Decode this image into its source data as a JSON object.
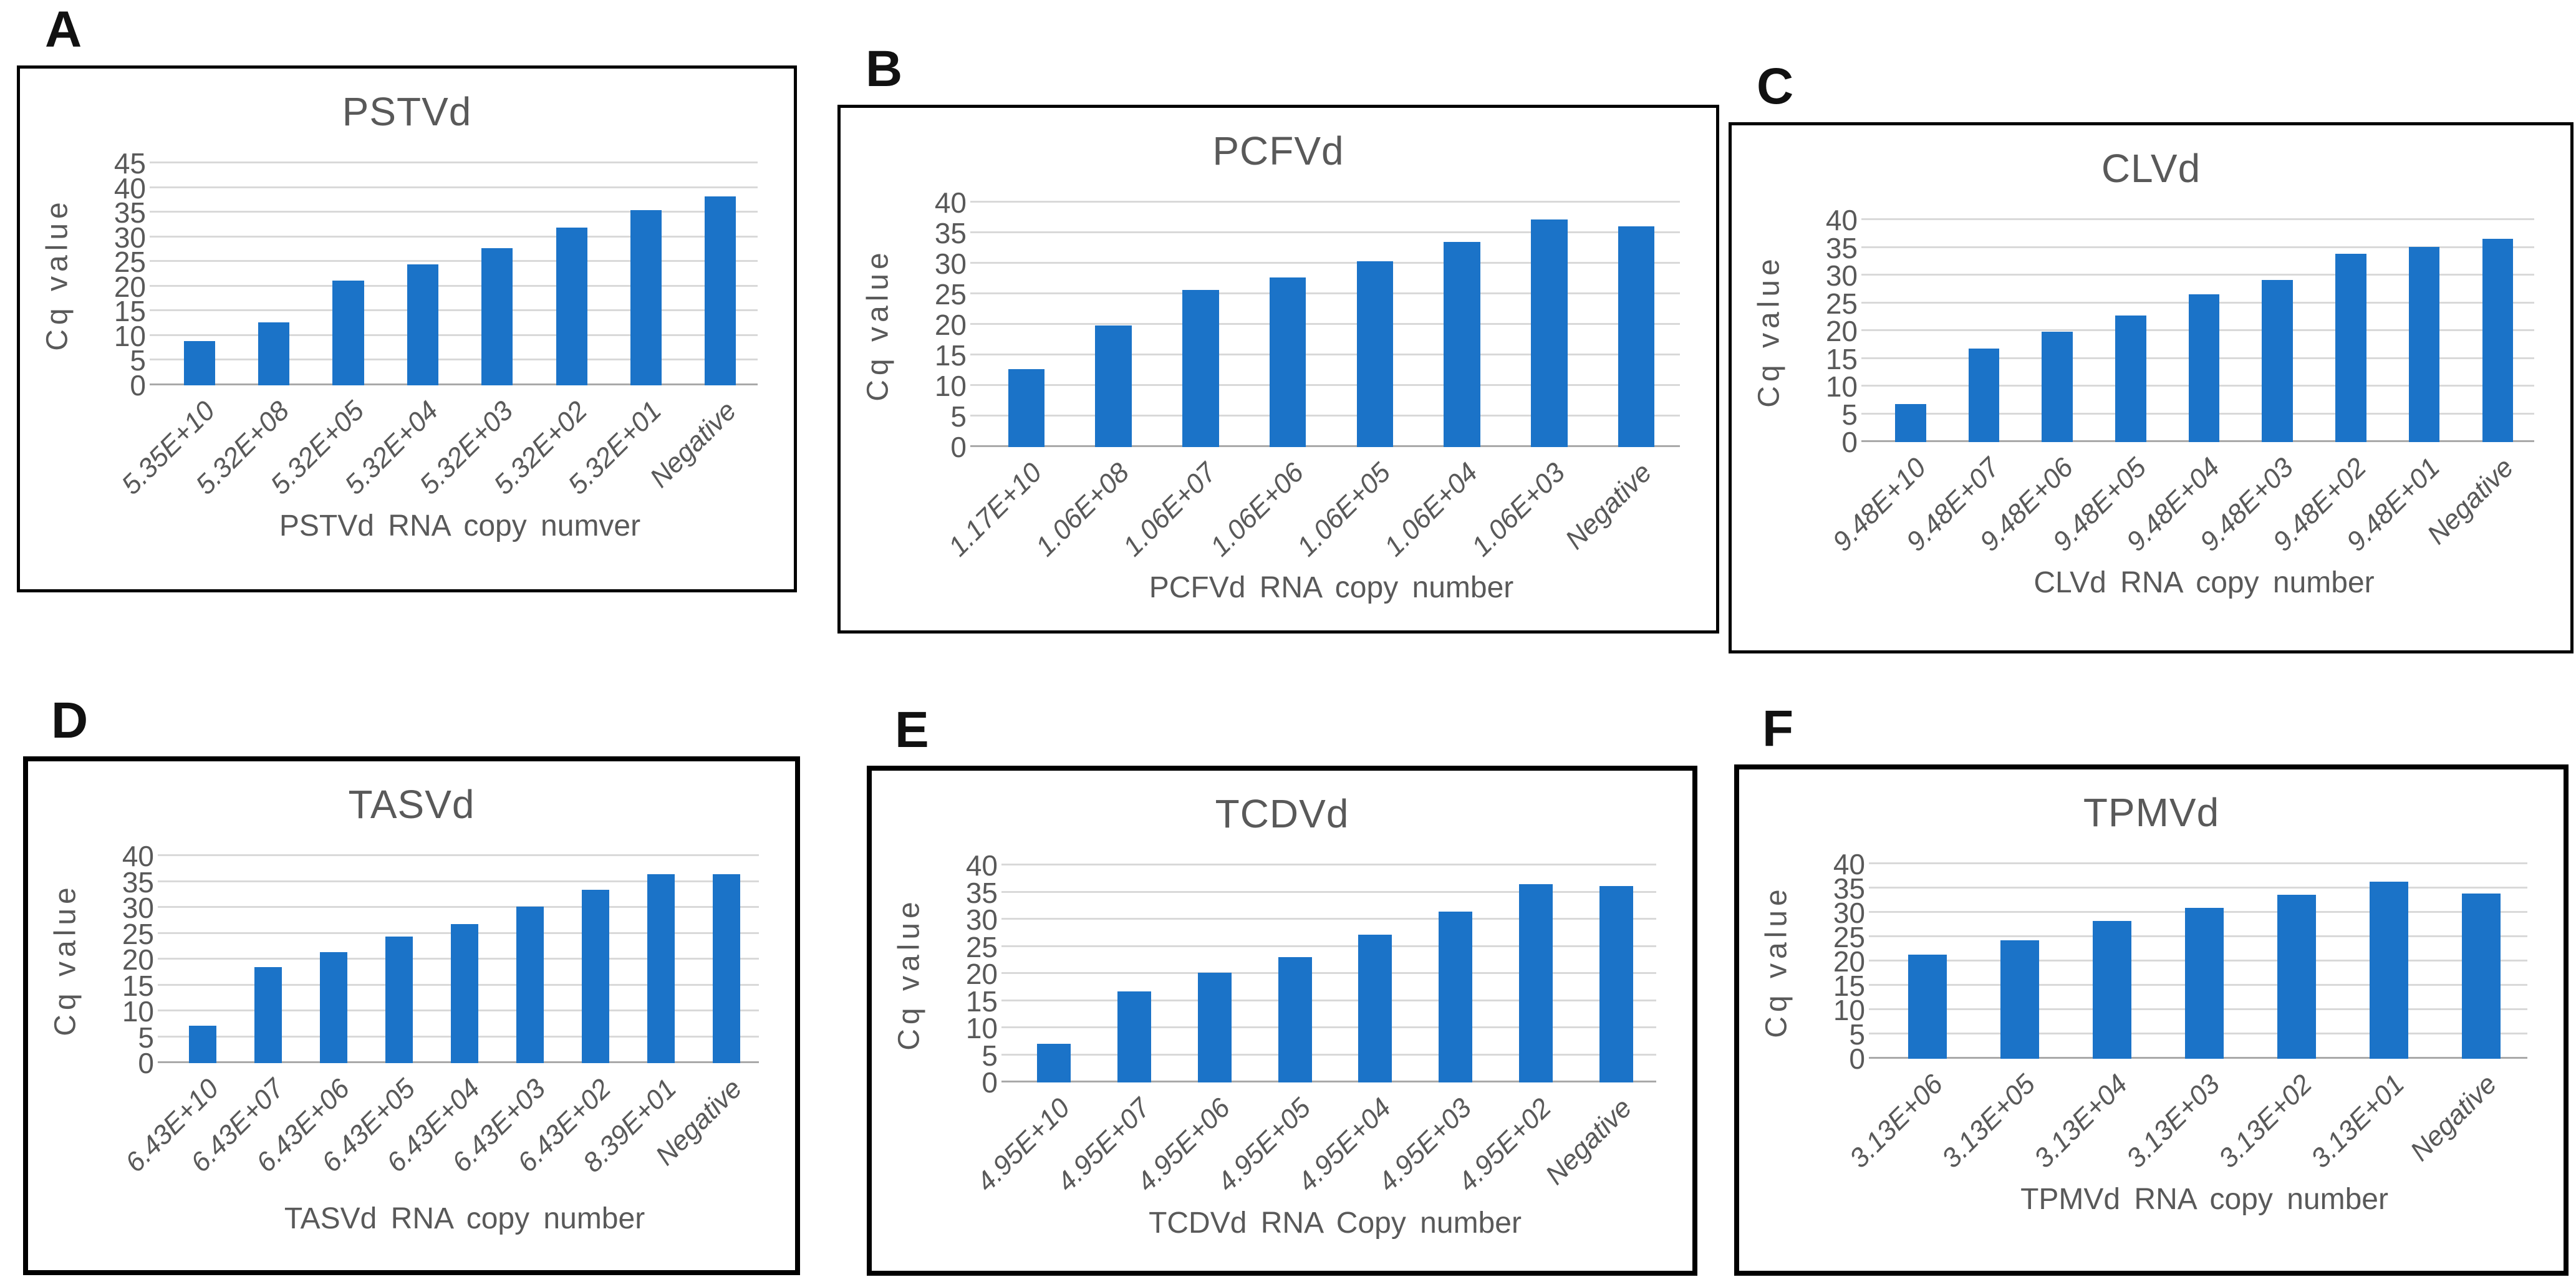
{
  "figure": {
    "description_note": "Six panel bar figure of RT-qPCR Cq values versus RNA copy number for six viroids",
    "background": "#ffffff"
  },
  "colors": {
    "bar": "#1b73c8",
    "gridline": "#d9d9d9",
    "axis_line": "#a9a9a9",
    "text_gray": "#595959",
    "panel_border": "#000000"
  },
  "chart_data": [
    {
      "type": "bar",
      "panel_letter": "A",
      "title": "PSTVd",
      "xlabel": "PSTVd RNA copy numver",
      "ylabel": "Cq value",
      "ylim": [
        0,
        45
      ],
      "ytick_step": 5,
      "grid": true,
      "legend": "none",
      "categories": [
        "5.35E+10",
        "5.32E+08",
        "5.32E+05",
        "5.32E+04",
        "5.32E+03",
        "5.32E+02",
        "5.32E+01",
        "Negative"
      ],
      "values": [
        9.0,
        12.8,
        21.3,
        24.5,
        27.8,
        32.0,
        35.5,
        38.3
      ]
    },
    {
      "type": "bar",
      "panel_letter": "B",
      "title": "PCFVd",
      "xlabel": "PCFVd RNA copy number",
      "ylabel": "Cq value",
      "ylim": [
        0,
        40
      ],
      "ytick_step": 5,
      "grid": true,
      "legend": "none",
      "categories": [
        "1.17E+10",
        "1.06E+08",
        "1.06E+07",
        "1.06E+06",
        "1.06E+05",
        "1.06E+04",
        "1.06E+03",
        "Negative"
      ],
      "values": [
        12.8,
        19.9,
        25.7,
        27.8,
        30.4,
        33.6,
        37.2,
        36.1
      ]
    },
    {
      "type": "bar",
      "panel_letter": "C",
      "title": "CLVd",
      "xlabel": "CLVd RNA copy number",
      "ylabel": "Cq value",
      "ylim": [
        0,
        40
      ],
      "ytick_step": 5,
      "grid": true,
      "legend": "none",
      "categories": [
        "9.48E+10",
        "9.48E+07",
        "9.48E+06",
        "9.48E+05",
        "9.48E+04",
        "9.48E+03",
        "9.48E+02",
        "9.48E+01",
        "Negative"
      ],
      "values": [
        6.8,
        16.8,
        19.9,
        22.8,
        26.6,
        29.2,
        33.9,
        35.2,
        36.6
      ]
    },
    {
      "type": "bar",
      "panel_letter": "D",
      "title": "TASVd",
      "xlabel": "TASVd  RNA copy number",
      "ylabel": "Cq value",
      "ylim": [
        0,
        40
      ],
      "ytick_step": 5,
      "grid": true,
      "legend": "none",
      "categories": [
        "6.43E+10",
        "6.43E+07",
        "6.43E+06",
        "6.43E+05",
        "6.43E+04",
        "6.43E+03",
        "6.43E+02",
        "8.39E+01",
        "Negative"
      ],
      "values": [
        7.2,
        18.5,
        21.4,
        24.4,
        26.9,
        30.2,
        33.5,
        36.5,
        36.5
      ]
    },
    {
      "type": "bar",
      "panel_letter": "E",
      "title": "TCDVd",
      "xlabel": "TCDVd RNA  Copy number",
      "ylabel": "Cq value",
      "ylim": [
        0,
        40
      ],
      "ytick_step": 5,
      "grid": true,
      "legend": "none",
      "categories": [
        "4.95E+10",
        "4.95E+07",
        "4.95E+06",
        "4.95E+05",
        "4.95E+04",
        "4.95E+03",
        "4.95E+02",
        "Negative"
      ],
      "values": [
        7.1,
        16.8,
        20.2,
        23.1,
        27.3,
        31.5,
        36.5,
        36.2
      ]
    },
    {
      "type": "bar",
      "panel_letter": "F",
      "title": "TPMVd",
      "xlabel": "TPMVd RNA copy number",
      "ylabel": "Cq value",
      "ylim": [
        0,
        40
      ],
      "ytick_step": 5,
      "grid": true,
      "legend": "none",
      "categories": [
        "3.13E+06",
        "3.13E+05",
        "3.13E+04",
        "3.13E+03",
        "3.13E+02",
        "3.13E+01",
        "Negative"
      ],
      "values": [
        21.4,
        24.4,
        28.3,
        31.0,
        33.7,
        36.4,
        34.0
      ]
    }
  ]
}
